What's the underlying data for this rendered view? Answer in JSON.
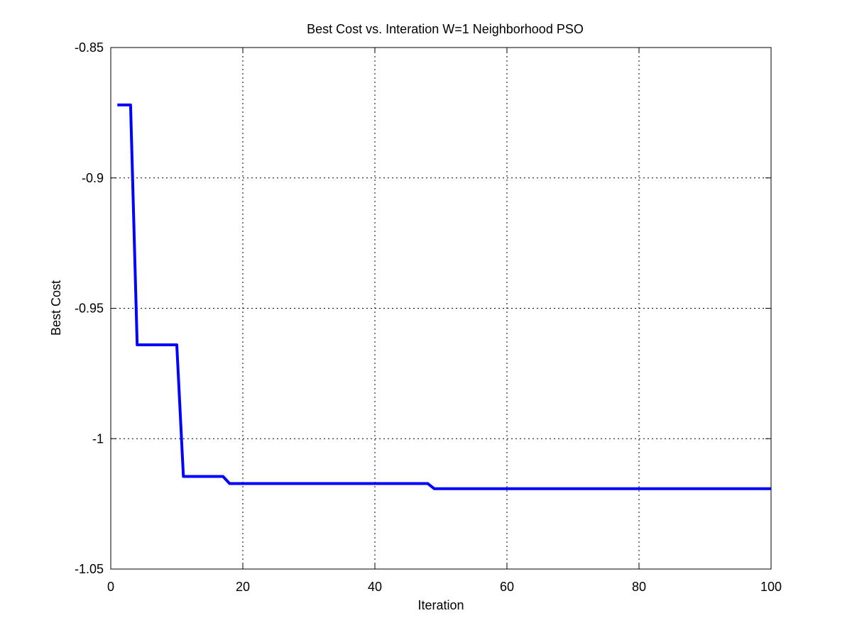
{
  "chart_data": {
    "type": "line",
    "title": "Best Cost vs. Interation W=1 Neighborhood PSO",
    "xlabel": "Iteration",
    "ylabel": "Best Cost",
    "xlim": [
      0,
      100
    ],
    "ylim": [
      -1.05,
      -0.85
    ],
    "xticks": [
      0,
      20,
      40,
      60,
      80,
      100
    ],
    "xtick_labels": [
      "0",
      "20",
      "40",
      "60",
      "80",
      "100"
    ],
    "yticks": [
      -1.05,
      -1.0,
      -0.95,
      -0.9,
      -0.85
    ],
    "ytick_labels": [
      "-1.05",
      "-1",
      "-0.95",
      "-0.9",
      "-0.85"
    ],
    "grid": true,
    "series": [
      {
        "color": "#0000ff",
        "x": [
          1,
          2,
          3,
          4,
          5,
          6,
          7,
          8,
          9,
          10,
          11,
          12,
          13,
          14,
          15,
          16,
          17,
          18,
          19,
          20,
          25,
          30,
          35,
          40,
          45,
          48,
          49,
          50,
          60,
          70,
          80,
          90,
          100
        ],
        "y": [
          -0.872,
          -0.872,
          -0.872,
          -0.964,
          -0.964,
          -0.964,
          -0.964,
          -0.964,
          -0.964,
          -0.964,
          -1.0145,
          -1.0145,
          -1.0145,
          -1.0145,
          -1.0145,
          -1.0145,
          -1.0145,
          -1.0172,
          -1.0172,
          -1.0172,
          -1.0172,
          -1.0172,
          -1.0172,
          -1.0172,
          -1.0172,
          -1.0172,
          -1.0192,
          -1.0192,
          -1.0192,
          -1.0192,
          -1.0192,
          -1.0192,
          -1.0192
        ]
      }
    ]
  }
}
